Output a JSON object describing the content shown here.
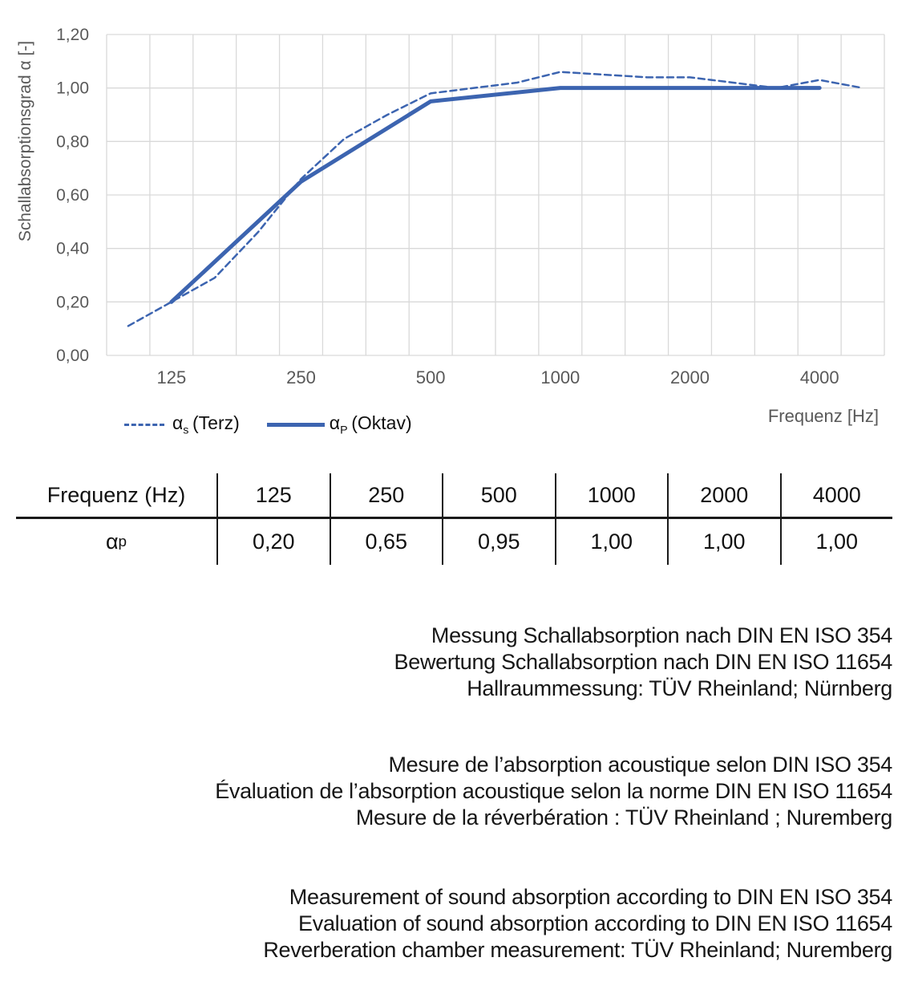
{
  "chart": {
    "y_axis_title": "Schallabsorptionsgrad α [-]",
    "x_axis_title": "Frequenz [Hz]"
  },
  "chart_data": {
    "type": "line",
    "title": "",
    "xlabel": "Frequenz [Hz]",
    "ylabel": "Schallabsorptionsgrad α [-]",
    "x_scale": "logarithmic, third-octave category axis",
    "categories": [
      100,
      125,
      160,
      200,
      250,
      315,
      400,
      500,
      630,
      800,
      1000,
      1250,
      1600,
      2000,
      2500,
      3150,
      4000,
      5000
    ],
    "x_tick_labels": [
      "125",
      "250",
      "500",
      "1000",
      "2000",
      "4000"
    ],
    "x_tick_freqs": [
      125,
      250,
      500,
      1000,
      2000,
      4000
    ],
    "y_ticks": [
      0.0,
      0.2,
      0.4,
      0.6,
      0.8,
      1.0,
      1.2
    ],
    "y_tick_labels": [
      "0,00",
      "0,20",
      "0,40",
      "0,60",
      "0,80",
      "1,00",
      "1,20"
    ],
    "ylim": [
      0,
      1.2
    ],
    "grid": true,
    "legend_position": "bottom-left",
    "series": [
      {
        "name": "αs (Terz)",
        "style": "dashed",
        "stroke_width": 2.5,
        "x": [
          100,
          125,
          160,
          200,
          250,
          315,
          400,
          500,
          630,
          800,
          1000,
          1250,
          1600,
          2000,
          2500,
          3150,
          4000,
          5000
        ],
        "values": [
          0.11,
          0.2,
          0.29,
          0.46,
          0.66,
          0.81,
          0.9,
          0.98,
          1.0,
          1.02,
          1.06,
          1.05,
          1.04,
          1.04,
          1.02,
          1.0,
          1.03,
          1.0
        ]
      },
      {
        "name": "αP (Oktav)",
        "style": "solid",
        "stroke_width": 5,
        "x": [
          125,
          250,
          500,
          1000,
          2000,
          4000
        ],
        "values": [
          0.2,
          0.65,
          0.95,
          1.0,
          1.0,
          1.0
        ]
      }
    ],
    "colors": {
      "line_blue": "#3c64b0",
      "grid": "#d9d9d9",
      "axis_text": "#595959"
    }
  },
  "legend": {
    "items": [
      {
        "alpha": "α",
        "sub": "s",
        "label": " (Terz)",
        "line_style": "dashed"
      },
      {
        "alpha": "α",
        "sub": "P",
        "label": " (Oktav)",
        "line_style": "solid"
      }
    ]
  },
  "table": {
    "header_label": "Frequenz (Hz)",
    "columns": [
      "125",
      "250",
      "500",
      "1000",
      "2000",
      "4000"
    ],
    "row_label": {
      "alpha": "α",
      "sub": "p"
    },
    "values": [
      "0,20",
      "0,65",
      "0,95",
      "1,00",
      "1,00",
      "1,00"
    ]
  },
  "notes": {
    "german": [
      "Messung Schallabsorption nach DIN EN ISO 354",
      "Bewertung Schallabsorption nach DIN EN ISO 11654",
      "Hallraummessung: TÜV Rheinland; Nürnberg"
    ],
    "french": [
      "Mesure de l’absorption acoustique selon DIN ISO 354",
      "Évaluation de l’absorption acoustique selon la norme DIN EN ISO 11654",
      "Mesure de la réverbération : TÜV Rheinland ; Nuremberg"
    ],
    "english": [
      "Measurement of sound absorption according to DIN EN ISO 354",
      "Evaluation of sound absorption according to DIN EN ISO 11654",
      "Reverberation chamber measurement: TÜV Rheinland; Nuremberg"
    ]
  }
}
